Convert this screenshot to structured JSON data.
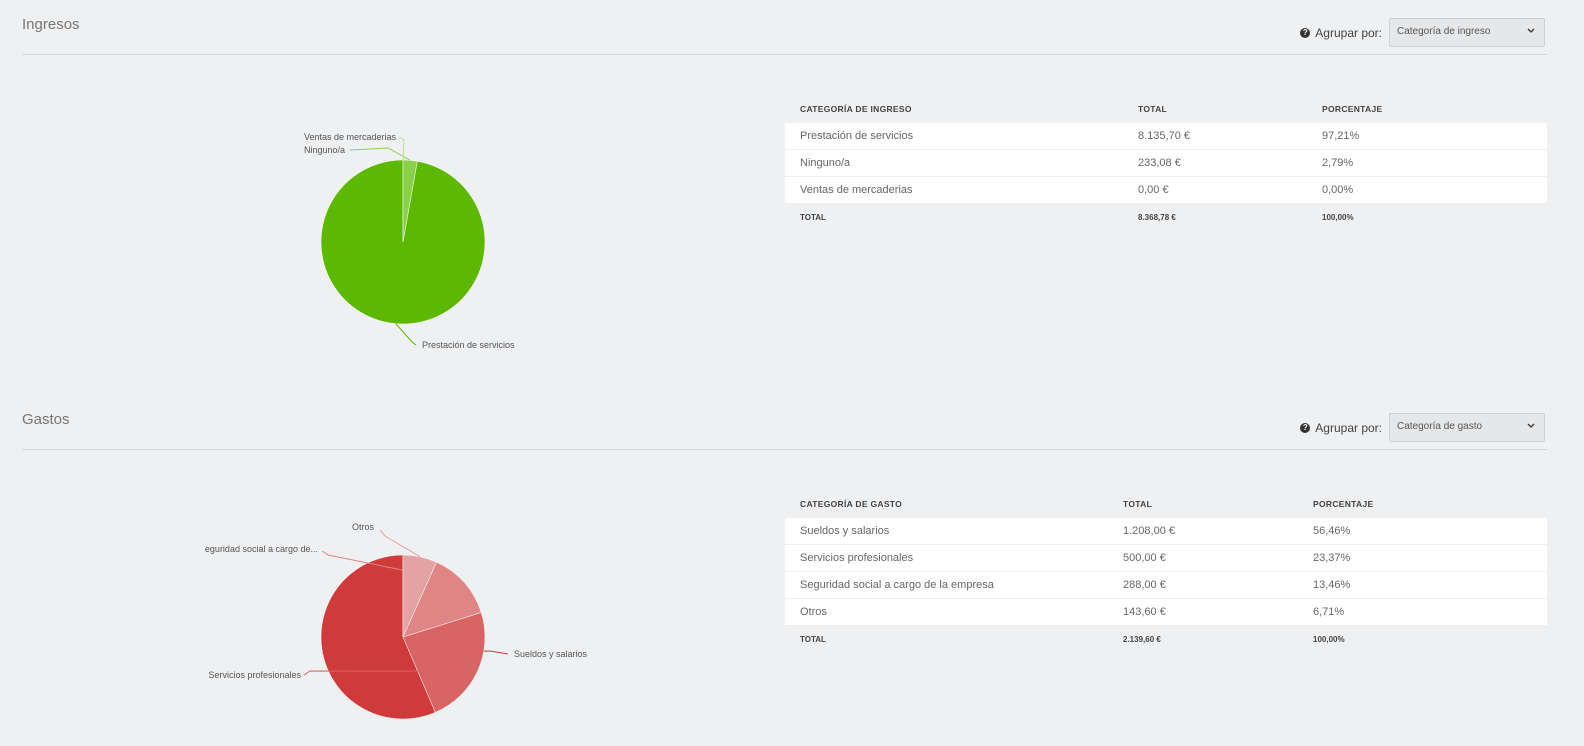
{
  "ingresos": {
    "title": "Ingresos",
    "groupby_label": "Agrupar por:",
    "select_value": "Categoría de ingreso",
    "table": {
      "headers": [
        "CATEGORÍA DE INGRESO",
        "TOTAL",
        "PORCENTAJE"
      ],
      "rows": [
        [
          "Prestación de servicios",
          "8.135,70 €",
          "97,21%"
        ],
        [
          "Ninguno/a",
          "233,08 €",
          "2,79%"
        ],
        [
          "Ventas de mercaderias",
          "0,00 €",
          "0,00%"
        ]
      ],
      "footer": [
        "TOTAL",
        "8.368,78 €",
        "100,00%"
      ]
    },
    "chart_data": {
      "type": "pie",
      "categories": [
        "Prestación de servicios",
        "Ninguno/a",
        "Ventas de mercaderias"
      ],
      "values": [
        97.21,
        2.79,
        0.0
      ],
      "labels": [
        "Prestación de servicios",
        "Ninguno/a",
        "Ventas de mercaderias"
      ],
      "colors": [
        "#5cb800",
        "#8bd04c",
        "#b5e08a"
      ]
    }
  },
  "gastos": {
    "title": "Gastos",
    "groupby_label": "Agrupar por:",
    "select_value": "Categoría de gasto",
    "table": {
      "headers": [
        "CATEGORÍA DE GASTO",
        "TOTAL",
        "PORCENTAJE"
      ],
      "rows": [
        [
          "Sueldos y salarios",
          "1.208,00 €",
          "56,46%"
        ],
        [
          "Servicios profesionales",
          "500,00 €",
          "23,37%"
        ],
        [
          "Seguridad social a cargo de la empresa",
          "288,00 €",
          "13,46%"
        ],
        [
          "Otros",
          "143,60 €",
          "6,71%"
        ]
      ],
      "footer": [
        "TOTAL",
        "2.139,60 €",
        "100,00%"
      ]
    },
    "chart_data": {
      "type": "pie",
      "categories": [
        "Sueldos y salarios",
        "Servicios profesionales",
        "Seguridad social a cargo de la empresa",
        "Otros"
      ],
      "values": [
        56.46,
        23.37,
        13.46,
        6.71
      ],
      "labels": [
        "Sueldos y salarios",
        "Servicios profesionales",
        "eguridad social a cargo de...",
        "Otros"
      ],
      "colors": [
        "#cf3a3a",
        "#d96464",
        "#df8585",
        "#e4a2a2"
      ]
    }
  }
}
